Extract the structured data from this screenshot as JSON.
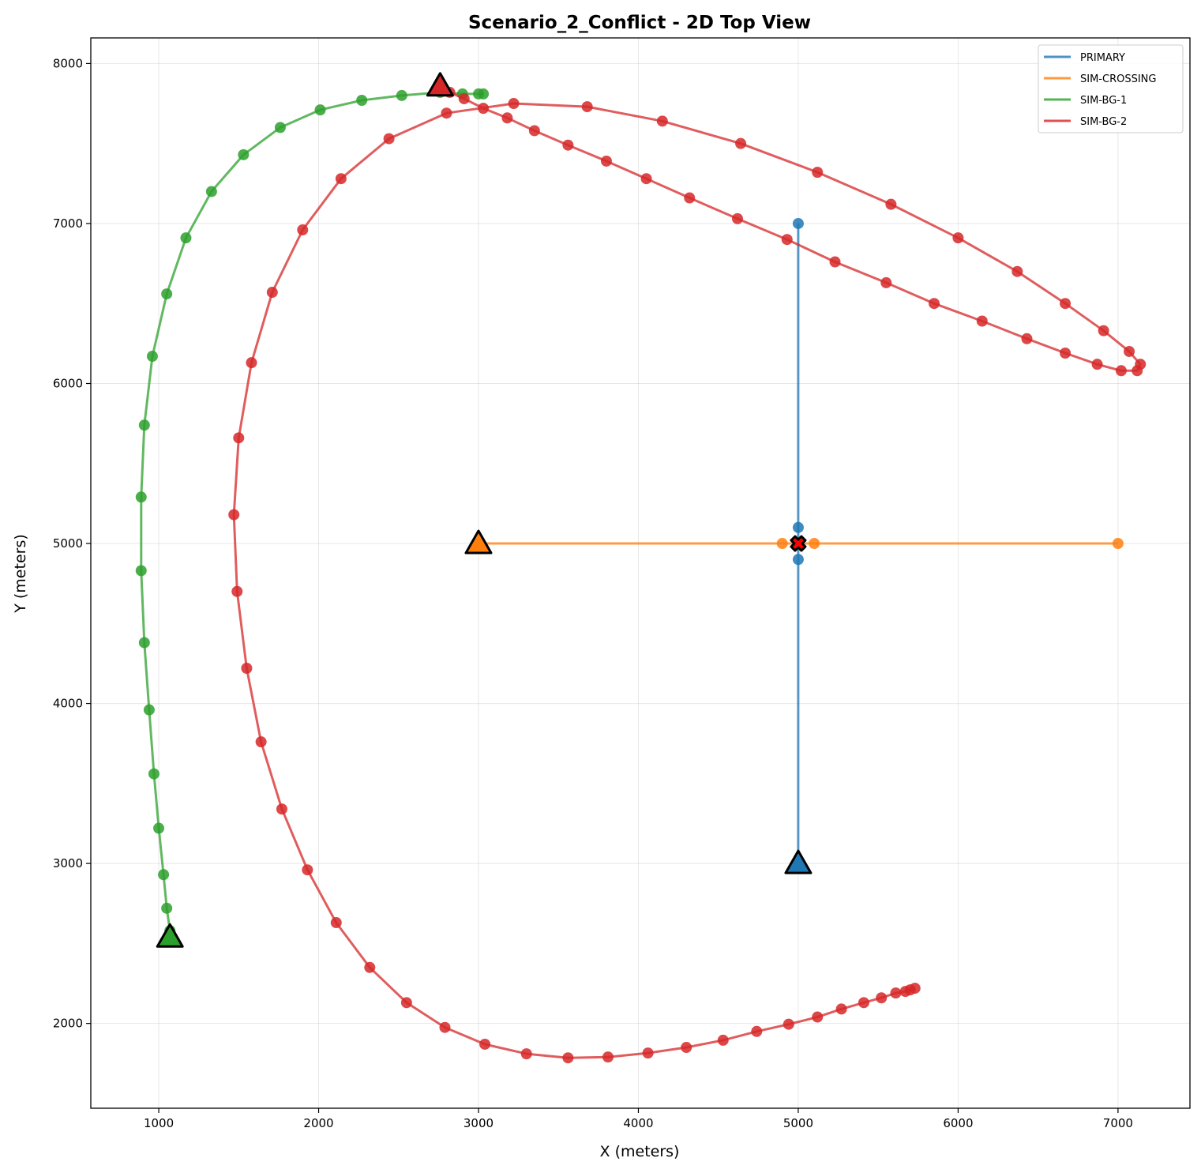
{
  "chart_data": {
    "type": "line",
    "title": "Scenario_2_Conflict - 2D Top View",
    "xlabel": "X (meters)",
    "ylabel": "Y (meters)",
    "xlim": [
      575,
      7450
    ],
    "ylim": [
      1470,
      8160
    ],
    "xticks": [
      1000,
      2000,
      3000,
      4000,
      5000,
      6000,
      7000
    ],
    "yticks": [
      2000,
      3000,
      4000,
      5000,
      6000,
      7000,
      8000
    ],
    "grid": true,
    "legend_position": "top-right",
    "series": [
      {
        "name": "PRIMARY",
        "color": "#1f77b4",
        "points": [
          [
            5000,
            3000
          ],
          [
            5000,
            4900
          ],
          [
            5000,
            5000
          ],
          [
            5000,
            5100
          ],
          [
            5000,
            7000
          ]
        ],
        "start": [
          5000,
          3000
        ]
      },
      {
        "name": "SIM-CROSSING",
        "color": "#ff7f0e",
        "points": [
          [
            3000,
            5000
          ],
          [
            4900,
            5000
          ],
          [
            5000,
            5000
          ],
          [
            5100,
            5000
          ],
          [
            7000,
            5000
          ]
        ],
        "start": [
          3000,
          5000
        ]
      },
      {
        "name": "SIM-BG-1",
        "color": "#2ca02c",
        "points": [
          [
            1070,
            2580
          ],
          [
            1050,
            2720
          ],
          [
            1030,
            2930
          ],
          [
            1000,
            3220
          ],
          [
            970,
            3560
          ],
          [
            940,
            3960
          ],
          [
            910,
            4380
          ],
          [
            890,
            4830
          ],
          [
            890,
            5290
          ],
          [
            910,
            5740
          ],
          [
            960,
            6170
          ],
          [
            1050,
            6560
          ],
          [
            1170,
            6910
          ],
          [
            1330,
            7200
          ],
          [
            1530,
            7430
          ],
          [
            1760,
            7600
          ],
          [
            2010,
            7710
          ],
          [
            2270,
            7770
          ],
          [
            2520,
            7800
          ],
          [
            2760,
            7820
          ],
          [
            2900,
            7810
          ],
          [
            3000,
            7810
          ],
          [
            3030,
            7810
          ]
        ],
        "start": [
          1070,
          2540
        ]
      },
      {
        "name": "SIM-BG-2",
        "color": "#d62728",
        "points": [
          [
            5730,
            2220
          ],
          [
            5700,
            2210
          ],
          [
            5670,
            2200
          ],
          [
            5610,
            2190
          ],
          [
            5520,
            2160
          ],
          [
            5410,
            2130
          ],
          [
            5270,
            2090
          ],
          [
            5120,
            2040
          ],
          [
            4940,
            1995
          ],
          [
            4740,
            1950
          ],
          [
            4530,
            1895
          ],
          [
            4300,
            1850
          ],
          [
            4060,
            1815
          ],
          [
            3810,
            1790
          ],
          [
            3560,
            1785
          ],
          [
            3300,
            1810
          ],
          [
            3040,
            1870
          ],
          [
            2790,
            1975
          ],
          [
            2550,
            2130
          ],
          [
            2320,
            2350
          ],
          [
            2110,
            2630
          ],
          [
            1930,
            2960
          ],
          [
            1770,
            3340
          ],
          [
            1640,
            3760
          ],
          [
            1550,
            4220
          ],
          [
            1490,
            4700
          ],
          [
            1470,
            5180
          ],
          [
            1500,
            5660
          ],
          [
            1580,
            6130
          ],
          [
            1710,
            6570
          ],
          [
            1900,
            6960
          ],
          [
            2140,
            7280
          ],
          [
            2440,
            7530
          ],
          [
            2800,
            7690
          ],
          [
            3220,
            7750
          ],
          [
            3680,
            7730
          ],
          [
            4150,
            7640
          ],
          [
            4640,
            7500
          ],
          [
            5120,
            7320
          ],
          [
            5580,
            7120
          ],
          [
            6000,
            6910
          ],
          [
            6370,
            6700
          ],
          [
            6670,
            6500
          ],
          [
            6910,
            6330
          ],
          [
            7070,
            6200
          ],
          [
            7140,
            6120
          ],
          [
            7120,
            6080
          ],
          [
            7020,
            6080
          ],
          [
            6870,
            6120
          ],
          [
            6670,
            6190
          ],
          [
            6430,
            6280
          ],
          [
            6150,
            6390
          ],
          [
            5850,
            6500
          ],
          [
            5550,
            6630
          ],
          [
            5230,
            6760
          ],
          [
            4930,
            6900
          ],
          [
            4620,
            7030
          ],
          [
            4320,
            7160
          ],
          [
            4050,
            7280
          ],
          [
            3800,
            7390
          ],
          [
            3560,
            7490
          ],
          [
            3350,
            7580
          ],
          [
            3180,
            7660
          ],
          [
            3030,
            7720
          ],
          [
            2910,
            7780
          ],
          [
            2820,
            7820
          ],
          [
            2760,
            7830
          ]
        ],
        "start": [
          2760,
          7860
        ]
      }
    ],
    "conflict_point": [
      5000,
      5000
    ],
    "legend": [
      "PRIMARY",
      "SIM-CROSSING",
      "SIM-BG-1",
      "SIM-BG-2"
    ]
  }
}
